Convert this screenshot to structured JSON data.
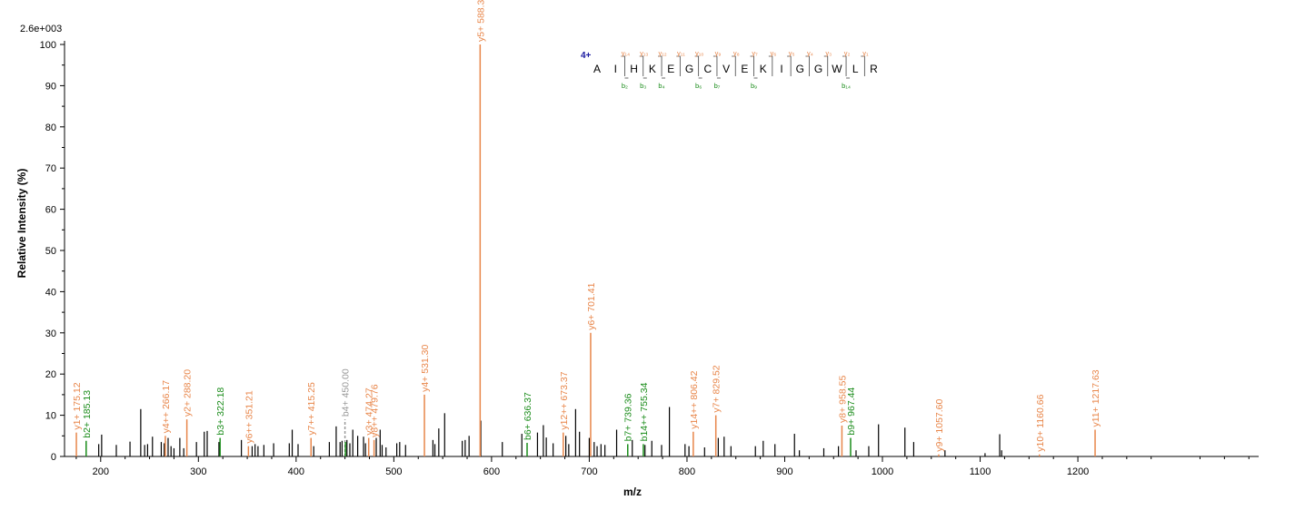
{
  "chart_data": {
    "type": "bar",
    "subtype": "ms-ms-spectrum",
    "title": "",
    "xlabel": "m/z",
    "ylabel": "Relative   Intensity (%)",
    "intensity_scale_label": "2.6e+003",
    "xlim": [
      163,
      1385
    ],
    "ylim": [
      0,
      100
    ],
    "x_ticks": [
      200,
      300,
      400,
      500,
      600,
      700,
      800,
      900,
      1000,
      1100,
      1200
    ],
    "y_ticks": [
      0,
      10,
      20,
      30,
      40,
      50,
      60,
      70,
      80,
      90,
      100
    ],
    "grid": false,
    "colors": {
      "y_ion": "#e8864a",
      "b_ion": "#1a8c1a",
      "unassigned": "#000000",
      "precursor": "#9a9a9a",
      "charge": "#1a1aa0"
    },
    "peptide": {
      "charge_label": "4+",
      "sequence": [
        "A",
        "I",
        "H",
        "K",
        "E",
        "G",
        "C",
        "V",
        "E",
        "K",
        "I",
        "G",
        "G",
        "W",
        "L",
        "R"
      ],
      "y_ions": [
        "y₁₄",
        "y₁₃",
        "y₁₂",
        "y₁₁",
        "y₁₀",
        "y₉",
        "y₈",
        "y₇",
        "y₆",
        "y₅",
        "y₄",
        "y₃",
        "y₂",
        "y₁"
      ],
      "b_ions": [
        "b₂",
        "b₃",
        "b₄",
        "b₆",
        "b₇",
        "b₉",
        "b₁₄"
      ]
    },
    "labeled_peaks": [
      {
        "mz": 175.12,
        "intensity": 5.8,
        "ion": "y",
        "label": "y1+ 175.12"
      },
      {
        "mz": 185.13,
        "intensity": 3.8,
        "ion": "b",
        "label": "b2+ 185.13"
      },
      {
        "mz": 266.17,
        "intensity": 5.0,
        "ion": "y",
        "label": "y4++ 266.17"
      },
      {
        "mz": 288.2,
        "intensity": 9.0,
        "ion": "y",
        "label": "y2+ 288.20"
      },
      {
        "mz": 322.18,
        "intensity": 4.5,
        "ion": "b",
        "label": "b3+ 322.18"
      },
      {
        "mz": 351.21,
        "intensity": 2.5,
        "ion": "y",
        "label": "y6++ 351.21"
      },
      {
        "mz": 415.25,
        "intensity": 4.5,
        "ion": "y",
        "label": "y7++ 415.25"
      },
      {
        "mz": 450.0,
        "intensity": 9.0,
        "ion": "p",
        "label": "b4+ 450.00"
      },
      {
        "mz": 450.5,
        "intensity": 3.5,
        "ion": "b",
        "label": ""
      },
      {
        "mz": 474.27,
        "intensity": 4.5,
        "ion": "y",
        "label": "y3+ 474.27"
      },
      {
        "mz": 479.76,
        "intensity": 4.0,
        "ion": "y",
        "label": "y8++ 479.76"
      },
      {
        "mz": 531.3,
        "intensity": 15.0,
        "ion": "y",
        "label": "y4+ 531.30"
      },
      {
        "mz": 588.32,
        "intensity": 100.0,
        "ion": "y",
        "label": "y5+ 588.32"
      },
      {
        "mz": 636.37,
        "intensity": 3.3,
        "ion": "b",
        "label": "b6+ 636.37"
      },
      {
        "mz": 673.37,
        "intensity": 5.8,
        "ion": "y",
        "label": "y12++ 673.37"
      },
      {
        "mz": 701.41,
        "intensity": 30.0,
        "ion": "y",
        "label": "y6+ 701.41"
      },
      {
        "mz": 739.36,
        "intensity": 3.0,
        "ion": "b",
        "label": "b7+ 739.36"
      },
      {
        "mz": 755.34,
        "intensity": 3.0,
        "ion": "b",
        "label": "b14++ 755.34"
      },
      {
        "mz": 806.42,
        "intensity": 6.0,
        "ion": "y",
        "label": "y14++ 806.42"
      },
      {
        "mz": 829.52,
        "intensity": 10.0,
        "ion": "y",
        "label": "y7+ 829.52"
      },
      {
        "mz": 958.55,
        "intensity": 7.5,
        "ion": "y",
        "label": "y8+ 958.55"
      },
      {
        "mz": 967.44,
        "intensity": 4.5,
        "ion": "b",
        "label": "b9+ 967.44"
      },
      {
        "mz": 1057.6,
        "intensity": 0.5,
        "ion": "y",
        "label": "y9+ 1057.60"
      },
      {
        "mz": 1160.66,
        "intensity": 0.5,
        "ion": "y",
        "label": "y10+ 1160.66"
      },
      {
        "mz": 1217.63,
        "intensity": 6.5,
        "ion": "y",
        "label": "y11+ 1217.63"
      }
    ],
    "other_peaks": [
      [
        198,
        3
      ],
      [
        201,
        5.3
      ],
      [
        216,
        2.8
      ],
      [
        230,
        3.6
      ],
      [
        241,
        11.5
      ],
      [
        245,
        2.8
      ],
      [
        248,
        3
      ],
      [
        253,
        4.8
      ],
      [
        262,
        3.5
      ],
      [
        265,
        3.2
      ],
      [
        269,
        4.5
      ],
      [
        272,
        2.5
      ],
      [
        275,
        2
      ],
      [
        281,
        4.5
      ],
      [
        285,
        2
      ],
      [
        298,
        3.5
      ],
      [
        306,
        6
      ],
      [
        309,
        6.2
      ],
      [
        321,
        3.5
      ],
      [
        344,
        4
      ],
      [
        355,
        2.5
      ],
      [
        358,
        3
      ],
      [
        361,
        2.5
      ],
      [
        367,
        2.8
      ],
      [
        377,
        3.2
      ],
      [
        393,
        3.2
      ],
      [
        396,
        6.5
      ],
      [
        402,
        3
      ],
      [
        418,
        2.5
      ],
      [
        434,
        3.5
      ],
      [
        441,
        7.3
      ],
      [
        445,
        3.5
      ],
      [
        447,
        3.8
      ],
      [
        452,
        4
      ],
      [
        455,
        3.2
      ],
      [
        458,
        6.5
      ],
      [
        463,
        5
      ],
      [
        469,
        4.8
      ],
      [
        471,
        3.2
      ],
      [
        482,
        4.5
      ],
      [
        486,
        6.5
      ],
      [
        488,
        2.8
      ],
      [
        492,
        2.2
      ],
      [
        503,
        3.2
      ],
      [
        506,
        3.5
      ],
      [
        512,
        2.8
      ],
      [
        540,
        4
      ],
      [
        542,
        3
      ],
      [
        546,
        6.8
      ],
      [
        552,
        10.5
      ],
      [
        570,
        3.8
      ],
      [
        573,
        4
      ],
      [
        577,
        5
      ],
      [
        589,
        8.7
      ],
      [
        611,
        3.5
      ],
      [
        631,
        5.5
      ],
      [
        647,
        5.8
      ],
      [
        653,
        7.6
      ],
      [
        656,
        4.6
      ],
      [
        663,
        3.2
      ],
      [
        676,
        5
      ],
      [
        679,
        3
      ],
      [
        686,
        11.5
      ],
      [
        690,
        6
      ],
      [
        700,
        4.5
      ],
      [
        705,
        3.5
      ],
      [
        708,
        2.5
      ],
      [
        712,
        3
      ],
      [
        716,
        2.8
      ],
      [
        728,
        6.5
      ],
      [
        744,
        4
      ],
      [
        757,
        2.8
      ],
      [
        764,
        3.8
      ],
      [
        774,
        2.8
      ],
      [
        782,
        12
      ],
      [
        798,
        3
      ],
      [
        802,
        2.5
      ],
      [
        818,
        2.2
      ],
      [
        832,
        4.5
      ],
      [
        838,
        4.8
      ],
      [
        845,
        2.5
      ],
      [
        870,
        2.5
      ],
      [
        878,
        3.8
      ],
      [
        890,
        3
      ],
      [
        910,
        5.5
      ],
      [
        915,
        1.5
      ],
      [
        940,
        2
      ],
      [
        955,
        2.5
      ],
      [
        973,
        1.5
      ],
      [
        986,
        2.5
      ],
      [
        996,
        7.8
      ],
      [
        1023,
        7
      ],
      [
        1032,
        3.5
      ],
      [
        1064,
        1.5
      ],
      [
        1120,
        5.4
      ],
      [
        1122,
        1.5
      ],
      [
        1105,
        0.8
      ]
    ]
  }
}
